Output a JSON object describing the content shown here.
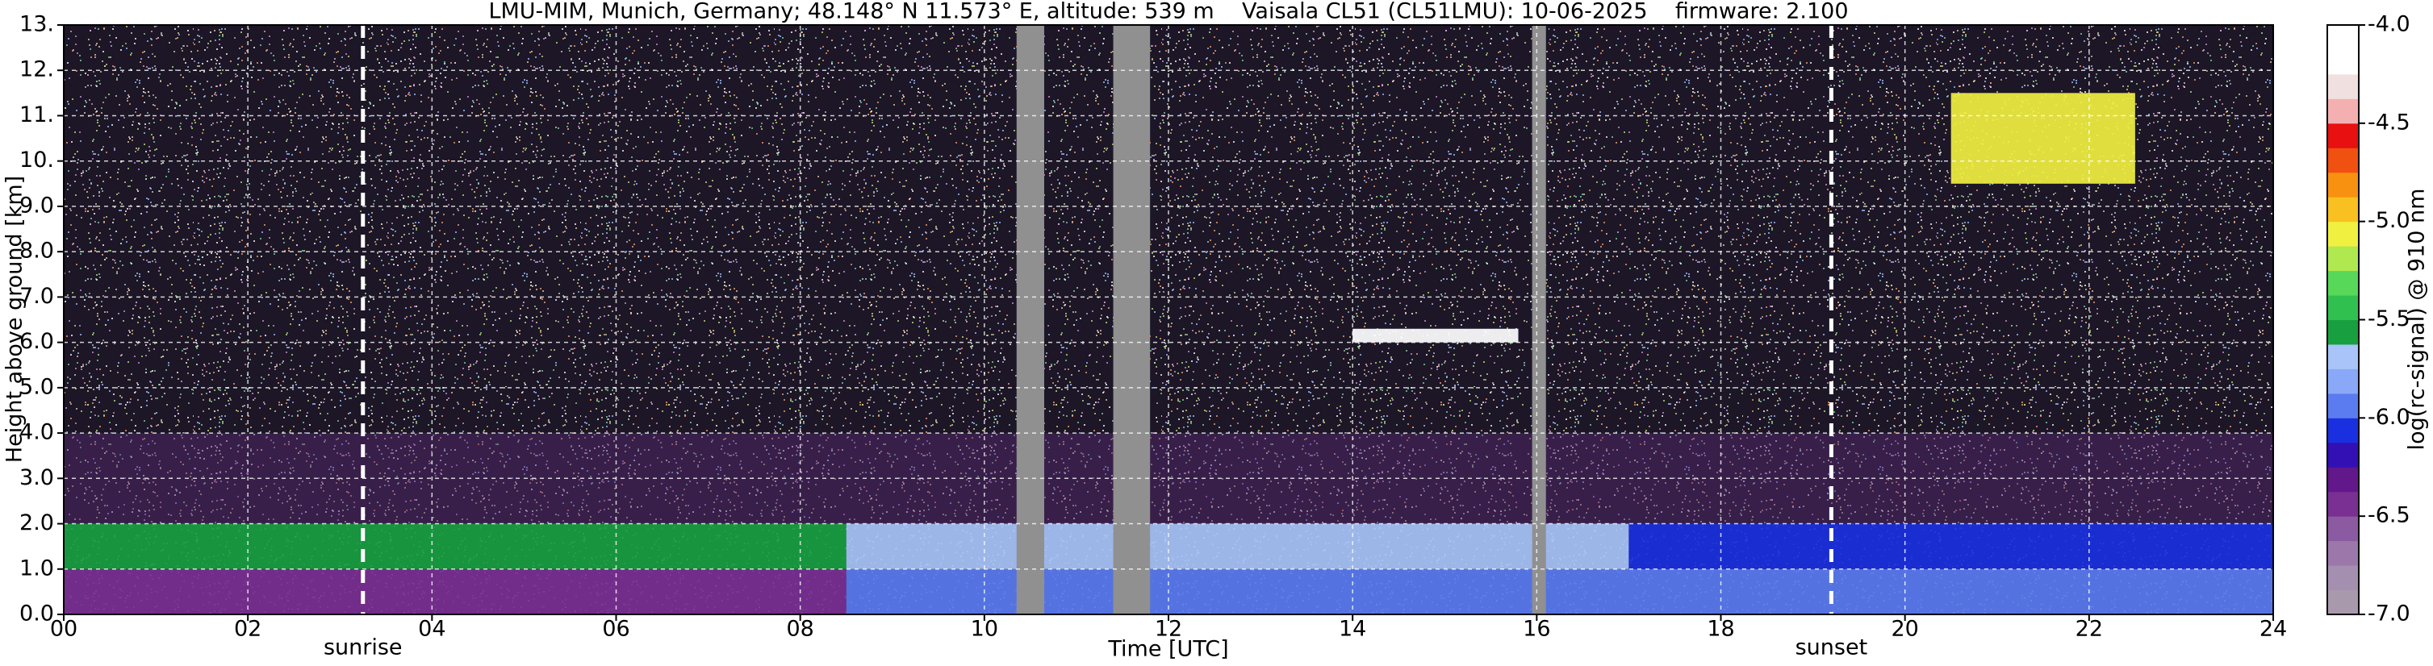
{
  "chart_data": {
    "type": "heatmap",
    "title": "LMU-MIM, Munich, Germany; 48.148° N 11.573° E, altitude: 539 m    Vaisala CL51 (CL51LMU): 10-06-2025    firmware: 2.100",
    "x_label": "Time [UTC]",
    "y_label": "Height above ground [km]",
    "xlim": [
      0,
      24
    ],
    "xticks": [
      {
        "value": 0,
        "label": "00"
      },
      {
        "value": 2,
        "label": "02"
      },
      {
        "value": 4,
        "label": "04"
      },
      {
        "value": 6,
        "label": "06"
      },
      {
        "value": 8,
        "label": "08"
      },
      10,
      12,
      14,
      16,
      18,
      20,
      22,
      24
    ],
    "ylim": [
      0,
      13
    ],
    "yticks": [
      {
        "value": 0,
        "label": "0.0"
      },
      {
        "value": 1,
        "label": "1.0"
      },
      {
        "value": 2,
        "label": "2.0"
      },
      {
        "value": 3,
        "label": "3.0"
      },
      {
        "value": 4,
        "label": "4.0"
      },
      {
        "value": 5,
        "label": "5.0"
      },
      {
        "value": 6,
        "label": "6.0"
      },
      {
        "value": 7,
        "label": "7.0"
      },
      {
        "value": 8,
        "label": "8.0"
      },
      {
        "value": 9,
        "label": "9.0"
      },
      {
        "value": 10,
        "label": "10."
      },
      {
        "value": 11,
        "label": "11."
      },
      {
        "value": 12,
        "label": "12."
      },
      {
        "value": 13,
        "label": "13."
      }
    ],
    "grid": true,
    "regions": [
      {
        "x": [
          0,
          8.5
        ],
        "y": [
          0,
          1
        ],
        "value": -6.4
      },
      {
        "x": [
          8.5,
          24
        ],
        "y": [
          0,
          1
        ],
        "value": -5.9
      },
      {
        "x": [
          0,
          8.5
        ],
        "y": [
          1,
          2
        ],
        "value": -5.6
      },
      {
        "x": [
          8.5,
          17
        ],
        "y": [
          1,
          2
        ],
        "value": -5.7
      },
      {
        "x": [
          17,
          24
        ],
        "y": [
          1,
          2
        ],
        "value": -6.1
      },
      {
        "x": [
          14,
          15.8
        ],
        "y": [
          6,
          6.3
        ],
        "value": -4.2
      },
      {
        "x": [
          20.5,
          22.5
        ],
        "y": [
          9.5,
          11.5
        ],
        "value": -5.1
      }
    ],
    "gaps": [
      {
        "x": [
          10.35,
          10.65
        ]
      },
      {
        "x": [
          11.4,
          11.8
        ]
      },
      {
        "x": [
          15.95,
          16.1
        ]
      }
    ],
    "gap_color": "#909090",
    "annotations": [
      {
        "text": "sunrise",
        "x": 3.25
      },
      {
        "text": "sunset",
        "x": 19.2
      }
    ],
    "colorbar": {
      "label": "log(rc-signal) @ 910 nm",
      "lim": [
        -7,
        -4
      ],
      "ticks": [
        {
          "value": -4,
          "label": "-4.0"
        },
        {
          "value": -4.5,
          "label": "-4.5"
        },
        {
          "value": -5,
          "label": "-5.0"
        },
        {
          "value": -5.5,
          "label": "-5.5"
        },
        {
          "value": -6,
          "label": "-6.0"
        },
        {
          "value": -6.5,
          "label": "-6.5"
        },
        {
          "value": -7,
          "label": "-7.0"
        }
      ],
      "colors": [
        "#a89aac",
        "#a48fb0",
        "#9c78aa",
        "#8c5aa0",
        "#7a3092",
        "#62188a",
        "#3210b4",
        "#1a30e0",
        "#5a7cf0",
        "#8aa8f8",
        "#a8c4f8",
        "#18a040",
        "#30c050",
        "#58d858",
        "#b0e850",
        "#f0f040",
        "#f8c020",
        "#f89010",
        "#f05010",
        "#e81010",
        "#f4b0b0",
        "#f0e0e0",
        "#ffffff",
        "#ffffff"
      ]
    }
  }
}
